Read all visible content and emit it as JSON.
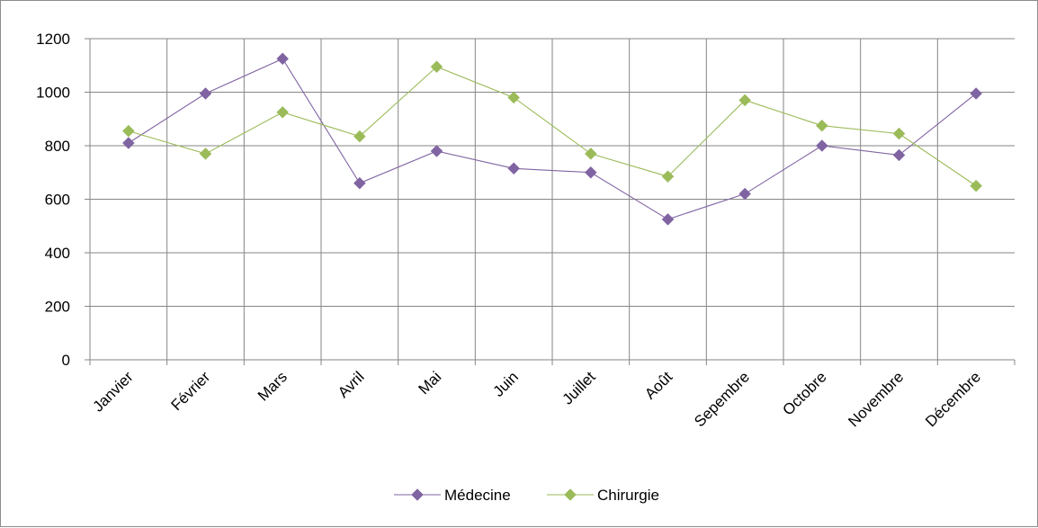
{
  "chart_data": {
    "type": "line",
    "title": "",
    "xlabel": "",
    "ylabel": "",
    "categories": [
      "Janvier",
      "Février",
      "Mars",
      "Avril",
      "Mai",
      "Juin",
      "Juillet",
      "Août",
      "Sepembre",
      "Octobre",
      "Novembre",
      "Décembre"
    ],
    "ylim": [
      0,
      1200
    ],
    "yticks": [
      "0",
      "200",
      "400",
      "600",
      "800",
      "1000",
      "1200"
    ],
    "grid": true,
    "legend_position": "bottom",
    "series": [
      {
        "name": "Médecine",
        "color": "#8064a2",
        "marker": "diamond",
        "values": [
          810,
          995,
          1125,
          660,
          780,
          715,
          700,
          525,
          620,
          800,
          765,
          995
        ]
      },
      {
        "name": "Chirurgie",
        "color": "#9bbb59",
        "marker": "diamond",
        "values": [
          855,
          770,
          925,
          835,
          1095,
          980,
          770,
          685,
          970,
          875,
          845,
          650
        ]
      }
    ]
  }
}
